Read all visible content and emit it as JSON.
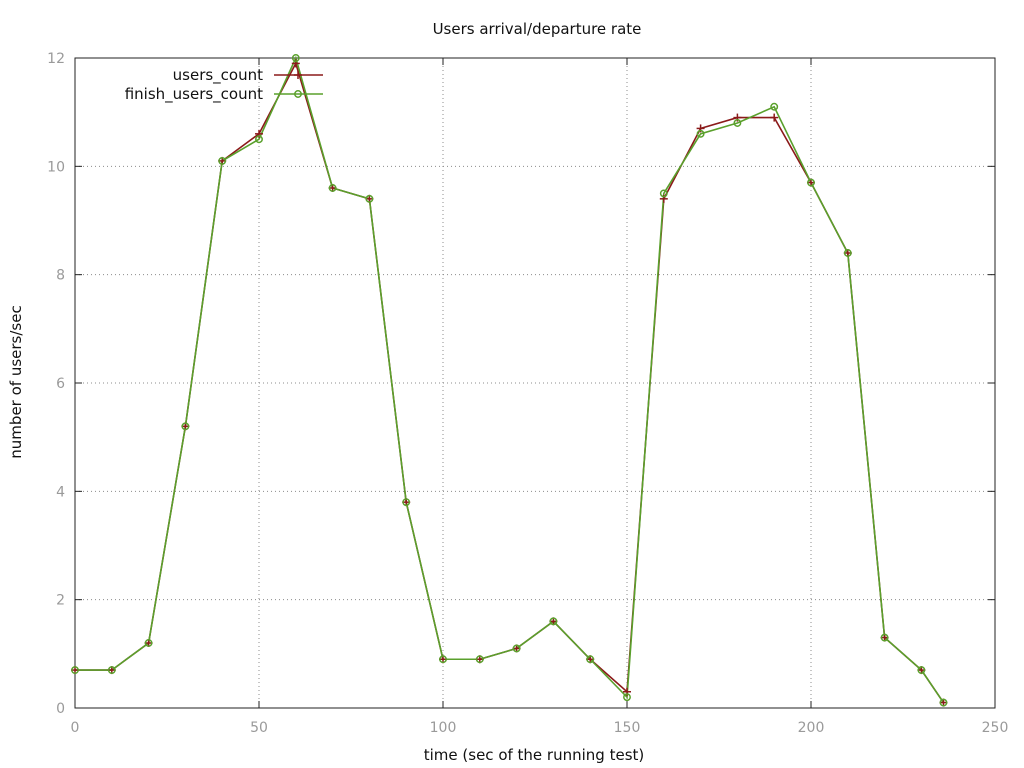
{
  "chart_data": {
    "type": "line",
    "title": "Users arrival/departure rate",
    "xlabel": "time (sec of the running test)",
    "ylabel": "number of users/sec",
    "xlim": [
      0,
      250
    ],
    "ylim": [
      0,
      12
    ],
    "x_ticks": [
      0,
      50,
      100,
      150,
      200,
      250
    ],
    "y_ticks": [
      0,
      2,
      4,
      6,
      8,
      10,
      12
    ],
    "grid": true,
    "legend_position": "top-left",
    "series": [
      {
        "name": "users_count",
        "color": "#8b1a1a",
        "marker": "plus",
        "x": [
          0,
          10,
          20,
          30,
          40,
          50,
          60,
          70,
          80,
          90,
          100,
          110,
          120,
          130,
          140,
          150,
          160,
          170,
          180,
          190,
          200,
          210,
          220,
          230,
          236
        ],
        "y": [
          0.7,
          0.7,
          1.2,
          5.2,
          10.1,
          10.6,
          11.9,
          9.6,
          9.4,
          3.8,
          0.9,
          0.9,
          1.1,
          1.6,
          0.9,
          0.3,
          9.4,
          10.7,
          10.9,
          10.9,
          9.7,
          8.4,
          1.3,
          0.7,
          0.1
        ]
      },
      {
        "name": "finish_users_count",
        "color": "#5aa02c",
        "marker": "circle",
        "x": [
          0,
          10,
          20,
          30,
          40,
          50,
          60,
          70,
          80,
          90,
          100,
          110,
          120,
          130,
          140,
          150,
          160,
          170,
          180,
          190,
          200,
          210,
          220,
          230,
          236
        ],
        "y": [
          0.7,
          0.7,
          1.2,
          5.2,
          10.1,
          10.5,
          12.0,
          9.6,
          9.4,
          3.8,
          0.9,
          0.9,
          1.1,
          1.6,
          0.9,
          0.2,
          9.5,
          10.6,
          10.8,
          11.1,
          9.7,
          8.4,
          1.3,
          0.7,
          0.1
        ]
      }
    ]
  }
}
